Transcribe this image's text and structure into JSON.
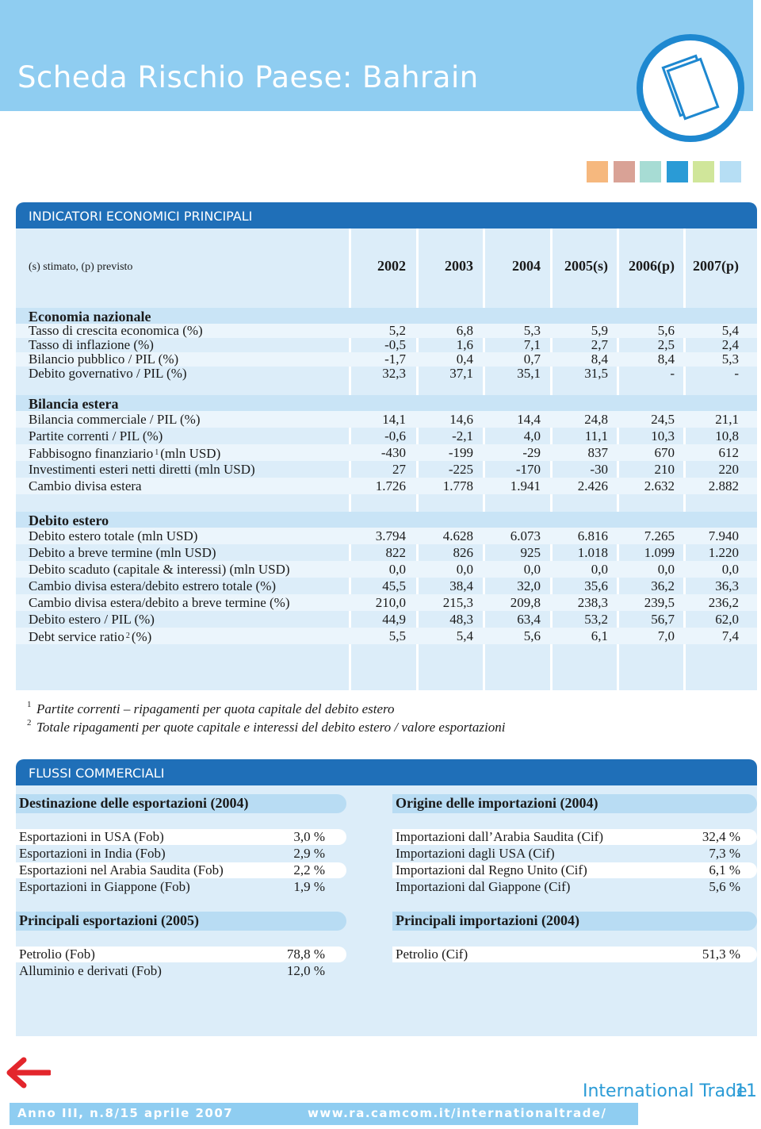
{
  "header": {
    "title": "Scheda Rischio Paese: Bahrain"
  },
  "indicators": {
    "heading": "INDICATORI ECONOMICI PRINCIPALI",
    "note": "(s) stimato, (p) previsto",
    "columns": [
      "2002",
      "2003",
      "2004",
      "2005(s)",
      "2006(p)",
      "2007(p)"
    ],
    "sections": [
      {
        "title": "Economia nazionale",
        "rows": [
          {
            "label": "Tasso di crescita economica (%)",
            "values": [
              "5,2",
              "6,8",
              "5,3",
              "5,9",
              "5,6",
              "5,4"
            ]
          },
          {
            "label": "Tasso di inflazione (%)",
            "values": [
              "-0,5",
              "1,6",
              "7,1",
              "2,7",
              "2,5",
              "2,4"
            ]
          },
          {
            "label": "Bilancio pubblico / PIL (%)",
            "values": [
              "-1,7",
              "0,4",
              "0,7",
              "8,4",
              "8,4",
              "5,3"
            ]
          },
          {
            "label": "Debito governativo / PIL (%)",
            "values": [
              "32,3",
              "37,1",
              "35,1",
              "31,5",
              "-",
              "-"
            ]
          }
        ]
      },
      {
        "title": "Bilancia estera",
        "rows": [
          {
            "label": "Bilancia commerciale / PIL (%)",
            "values": [
              "14,1",
              "14,6",
              "14,4",
              "24,8",
              "24,5",
              "21,1"
            ]
          },
          {
            "label": "Partite correnti / PIL (%)",
            "values": [
              "-0,6",
              "-2,1",
              "4,0",
              "11,1",
              "10,3",
              "10,8"
            ]
          },
          {
            "label": "Fabbisogno finanziario",
            "note": "1",
            "unit": "(mln USD)",
            "values": [
              "-430",
              "-199",
              "-29",
              "837",
              "670",
              "612"
            ]
          },
          {
            "label": "Investimenti esteri netti diretti (mln USD)",
            "values": [
              "27",
              "-225",
              "-170",
              "-30",
              "210",
              "220"
            ]
          },
          {
            "label": "Cambio divisa estera",
            "values": [
              "1.726",
              "1.778",
              "1.941",
              "2.426",
              "2.632",
              "2.882"
            ]
          }
        ]
      },
      {
        "title": "Debito estero",
        "rows": [
          {
            "label": "Debito estero totale (mln USD)",
            "values": [
              "3.794",
              "4.628",
              "6.073",
              "6.816",
              "7.265",
              "7.940"
            ]
          },
          {
            "label": "Debito a breve termine (mln USD)",
            "values": [
              "822",
              "826",
              "925",
              "1.018",
              "1.099",
              "1.220"
            ]
          },
          {
            "label": "Debito scaduto (capitale & interessi) (mln USD)",
            "values": [
              "0,0",
              "0,0",
              "0,0",
              "0,0",
              "0,0",
              "0,0"
            ]
          },
          {
            "label": "Cambio divisa estera/debito estrero totale (%)",
            "values": [
              "45,5",
              "38,4",
              "32,0",
              "35,6",
              "36,2",
              "36,3"
            ]
          },
          {
            "label": "Cambio divisa estera/debito a breve termine (%)",
            "values": [
              "210,0",
              "215,3",
              "209,8",
              "238,3",
              "239,5",
              "236,2"
            ]
          },
          {
            "label": "Debito estero / PIL (%)",
            "values": [
              "44,9",
              "48,3",
              "63,4",
              "53,2",
              "56,7",
              "62,0"
            ]
          },
          {
            "label": "Debt service ratio",
            "note": "2",
            "unit": "(%)",
            "values": [
              "5,5",
              "5,4",
              "5,6",
              "6,1",
              "7,0",
              "7,4"
            ]
          }
        ]
      }
    ]
  },
  "footnotes": [
    {
      "mark": "1",
      "text": "Partite correnti – ripagamenti per quota capitale del debito estero"
    },
    {
      "mark": "2",
      "text": "Totale ripagamenti per quote capitale e interessi del debito estero / valore esportazioni"
    }
  ],
  "trade": {
    "heading": "FLUSSI COMMERCIALI",
    "columns": [
      [
        {
          "title": "Destinazione delle esportazioni (2004)",
          "rows": [
            {
              "label": "Esportazioni in USA (Fob)",
              "value": "3,0 %"
            },
            {
              "label": "Esportazioni in India (Fob)",
              "value": "2,9 %"
            },
            {
              "label": "Esportazioni nel Arabia Saudita (Fob)",
              "value": "2,2 %"
            },
            {
              "label": "Esportazioni in Giappone (Fob)",
              "value": "1,9 %"
            }
          ]
        },
        {
          "title": "Principali esportazioni (2005)",
          "rows": [
            {
              "label": "Petrolio (Fob)",
              "value": "78,8 %"
            },
            {
              "label": "Alluminio e derivati (Fob)",
              "value": "12,0 %"
            }
          ]
        }
      ],
      [
        {
          "title": "Origine delle importazioni (2004)",
          "rows": [
            {
              "label": "Importazioni dall’Arabia Saudita (Cif)",
              "value": "32,4 %"
            },
            {
              "label": "Importazioni dagli USA (Cif)",
              "value": "7,3 %"
            },
            {
              "label": "Importazioni dal Regno Unito (Cif)",
              "value": "6,1 %"
            },
            {
              "label": "Importazioni dal Giappone (Cif)",
              "value": "5,6 %"
            }
          ]
        },
        {
          "title": "Principali importazioni (2004)",
          "rows": [
            {
              "label": "Petrolio (Cif)",
              "value": "51,3 %"
            }
          ]
        }
      ]
    ]
  },
  "footer": {
    "issue": "Anno III, n.8/15 aprile 2007",
    "url": "www.ra.camcom.it/internationaltrade/",
    "brand": "International Trade",
    "page": "11"
  }
}
